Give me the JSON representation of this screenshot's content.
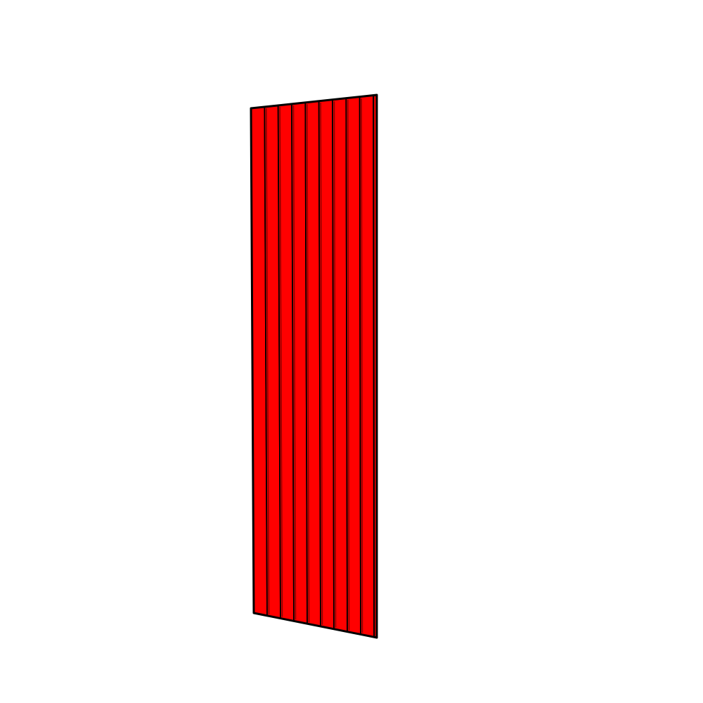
{
  "panel": {
    "slat_count": 9,
    "colors": {
      "slat_face": "#ff0000",
      "slat_shadow": "#8b0000",
      "outline": "#000000",
      "background": "#ffffff"
    }
  }
}
